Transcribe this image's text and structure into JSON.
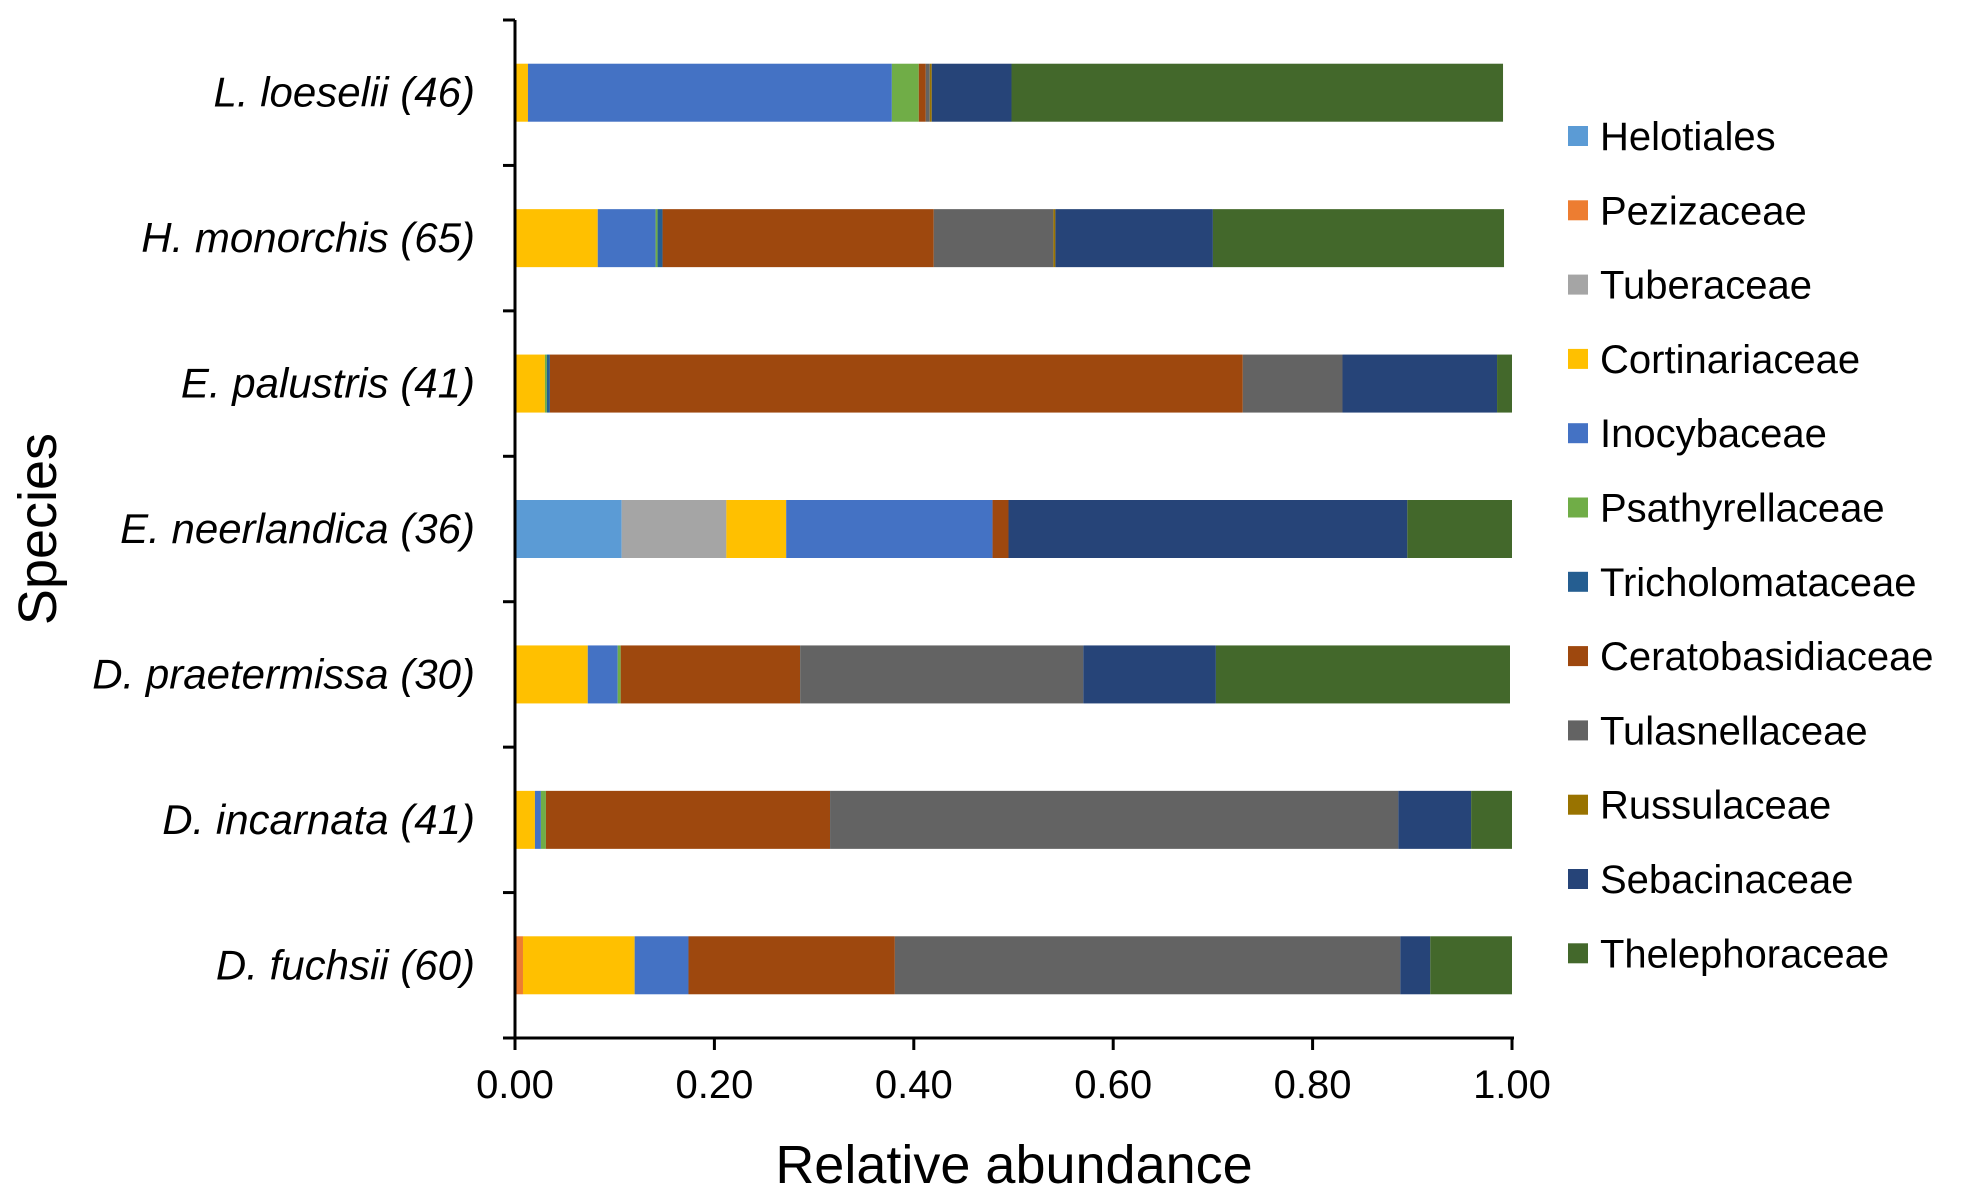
{
  "chart_data": {
    "type": "bar",
    "orientation": "horizontal",
    "stacked": true,
    "title": "",
    "xlabel": "Relative abundance",
    "ylabel": "Species",
    "xlim": [
      0,
      1
    ],
    "xticks": [
      "0.00",
      "0.20",
      "0.40",
      "0.60",
      "0.80",
      "1.00"
    ],
    "categories": [
      "L. loeselii (46)",
      "H. monorchis (65)",
      "E. palustris (41)",
      "E. neerlandica (36)",
      "D. praetermissa (30)",
      "D. incarnata (41)",
      "D. fuchsii (60)"
    ],
    "legend_position": "right",
    "series": [
      {
        "name": "Helotiales",
        "color": "#5B9BD5",
        "values": [
          0,
          0,
          0,
          0.107,
          0,
          0,
          0
        ]
      },
      {
        "name": "Pezizaceae",
        "color": "#ED7D31",
        "values": [
          0,
          0,
          0,
          0,
          0,
          0,
          0.008
        ]
      },
      {
        "name": "Tuberaceae",
        "color": "#A5A5A5",
        "values": [
          0,
          0,
          0,
          0.105,
          0,
          0,
          0
        ]
      },
      {
        "name": "Cortinariaceae",
        "color": "#FFC000",
        "values": [
          0.013,
          0.083,
          0.03,
          0.06,
          0.073,
          0.02,
          0.112
        ]
      },
      {
        "name": "Inocybaceae",
        "color": "#4472C4",
        "values": [
          0.365,
          0.058,
          0,
          0.207,
          0.03,
          0.006,
          0.054
        ]
      },
      {
        "name": "Psathyrellaceae",
        "color": "#70AD47",
        "values": [
          0.027,
          0.002,
          0.002,
          0,
          0.003,
          0.005,
          0
        ]
      },
      {
        "name": "Tricholomataceae",
        "color": "#255E91",
        "values": [
          0,
          0.005,
          0.003,
          0,
          0,
          0,
          0
        ]
      },
      {
        "name": "Ceratobasidiaceae",
        "color": "#9E480E",
        "values": [
          0.007,
          0.272,
          0.695,
          0.016,
          0.18,
          0.285,
          0.207
        ]
      },
      {
        "name": "Tulasnellaceae",
        "color": "#636363",
        "values": [
          0.004,
          0.12,
          0.1,
          0,
          0.284,
          0.57,
          0.507
        ]
      },
      {
        "name": "Russulaceae",
        "color": "#997300",
        "values": [
          0.002,
          0.002,
          0,
          0,
          0,
          0,
          0
        ]
      },
      {
        "name": "Sebacinaceae",
        "color": "#264478",
        "values": [
          0.08,
          0.158,
          0.155,
          0.4,
          0.133,
          0.073,
          0.03
        ]
      },
      {
        "name": "Thelephoraceae",
        "color": "#43682B",
        "values": [
          0.493,
          0.292,
          0.015,
          0.105,
          0.295,
          0.041,
          0.082
        ]
      }
    ]
  }
}
